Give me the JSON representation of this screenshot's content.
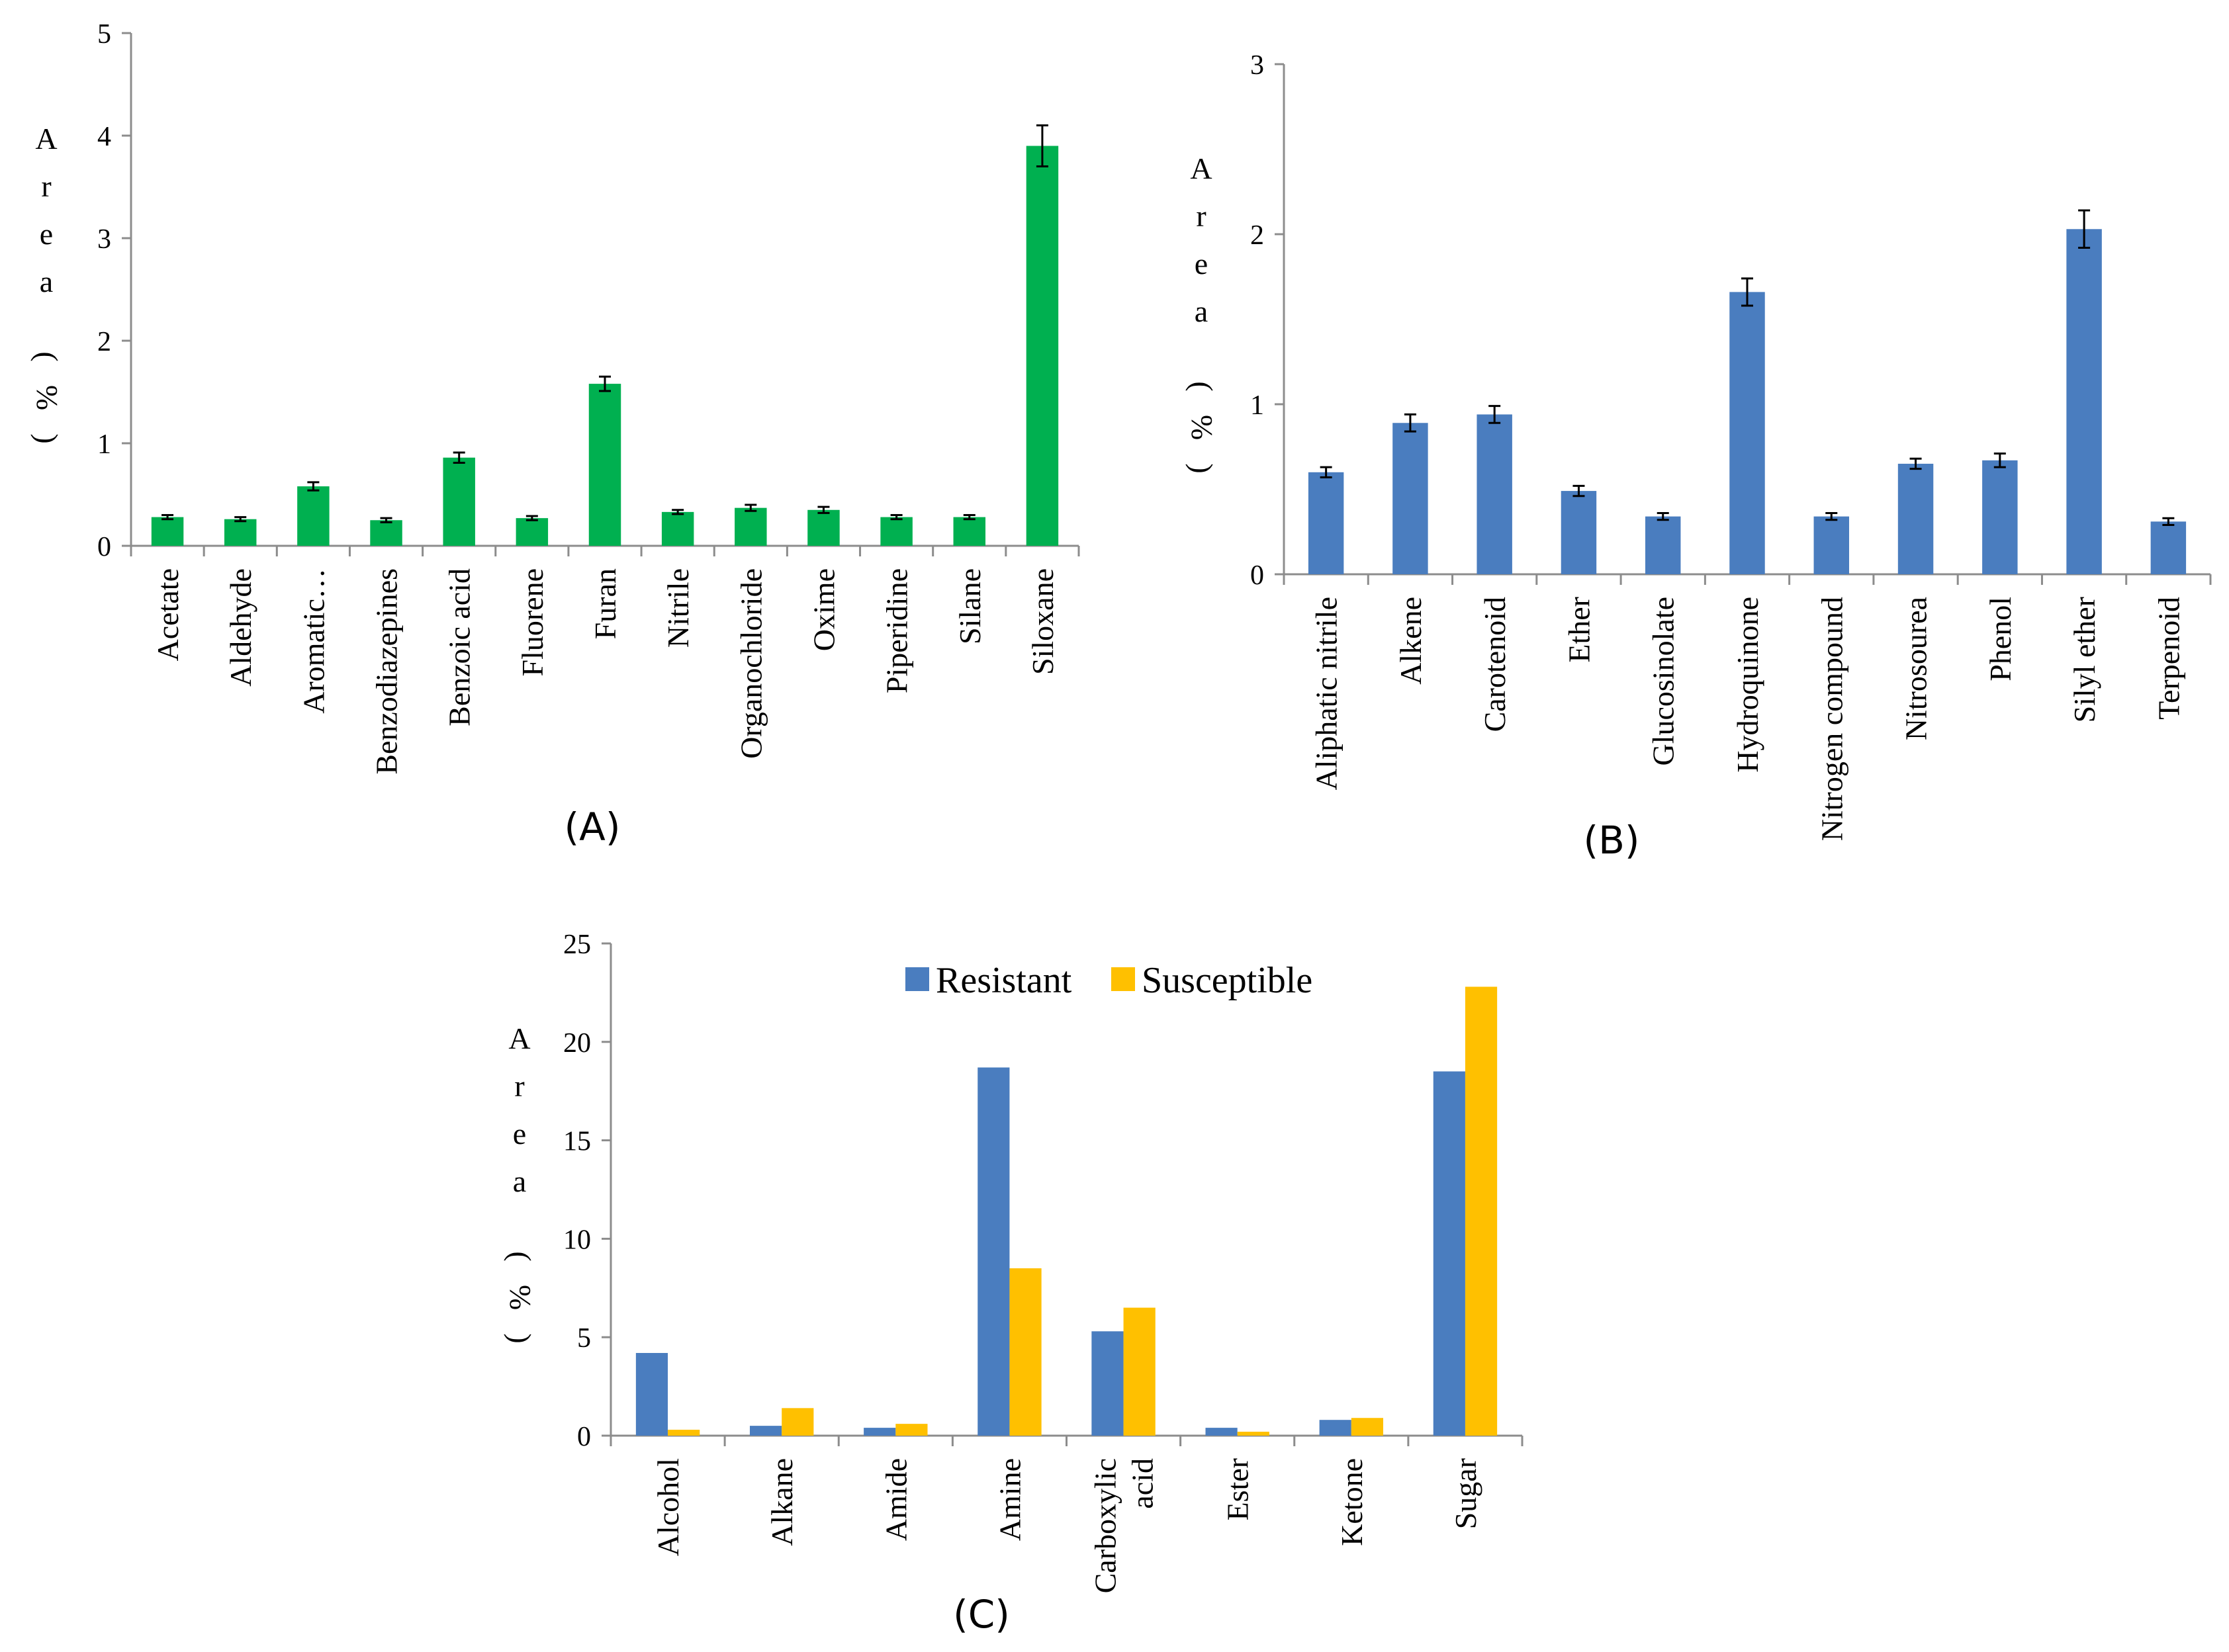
{
  "chart_data": [
    {
      "type": "bar",
      "panel_label": "(A)",
      "ylabel": "Area (%)",
      "ylim": [
        0,
        5
      ],
      "yticks": [
        0,
        1,
        2,
        3,
        4,
        5
      ],
      "color": "#00b050",
      "categories": [
        "Acetate",
        "Aldehyde",
        "Aromatic…",
        "Benzodiazepines",
        "Benzoic acid",
        "Fluorene",
        "Furan",
        "Nitrile",
        "Organochloride",
        "Oxime",
        "Piperidine",
        "Silane",
        "Siloxane"
      ],
      "values": [
        0.28,
        0.26,
        0.58,
        0.25,
        0.86,
        0.27,
        1.58,
        0.33,
        0.37,
        0.35,
        0.28,
        0.28,
        3.9
      ],
      "errors": [
        0.02,
        0.02,
        0.04,
        0.02,
        0.05,
        0.02,
        0.07,
        0.02,
        0.03,
        0.03,
        0.02,
        0.02,
        0.2
      ]
    },
    {
      "type": "bar",
      "panel_label": "(B)",
      "ylabel": "Area (%)",
      "ylim": [
        0,
        3
      ],
      "yticks": [
        0,
        1,
        2,
        3
      ],
      "color": "#4a7dbf",
      "categories": [
        "Aliphatic nitrile",
        "Alkene",
        "Carotenoid",
        "Ether",
        "Glucosinolate",
        "Hydroquinone",
        "Nitrogen compound",
        "Nitrosourea",
        "Phenol",
        "Silyl ether",
        "Terpenoid"
      ],
      "values": [
        0.6,
        0.89,
        0.94,
        0.49,
        0.34,
        1.66,
        0.34,
        0.65,
        0.67,
        2.03,
        0.31
      ],
      "errors": [
        0.03,
        0.05,
        0.05,
        0.03,
        0.02,
        0.08,
        0.02,
        0.03,
        0.04,
        0.11,
        0.02
      ]
    },
    {
      "type": "bar",
      "panel_label": "(C)",
      "ylabel": "Area (%)",
      "ylim": [
        0,
        25
      ],
      "yticks": [
        0,
        5,
        10,
        15,
        20,
        25
      ],
      "categories": [
        "Alcohol",
        "Alkane",
        "Amide",
        "Amine",
        "Carboxylic acid",
        "Ester",
        "Ketone",
        "Sugar"
      ],
      "series": [
        {
          "name": "Resistant",
          "color": "#4a7dbf",
          "values": [
            4.2,
            0.5,
            0.4,
            18.7,
            5.3,
            0.4,
            0.8,
            18.5
          ]
        },
        {
          "name": "Susceptible",
          "color": "#ffc000",
          "values": [
            0.3,
            1.4,
            0.6,
            8.5,
            6.5,
            0.2,
            0.9,
            22.8
          ]
        }
      ],
      "legend": "top-center"
    }
  ]
}
